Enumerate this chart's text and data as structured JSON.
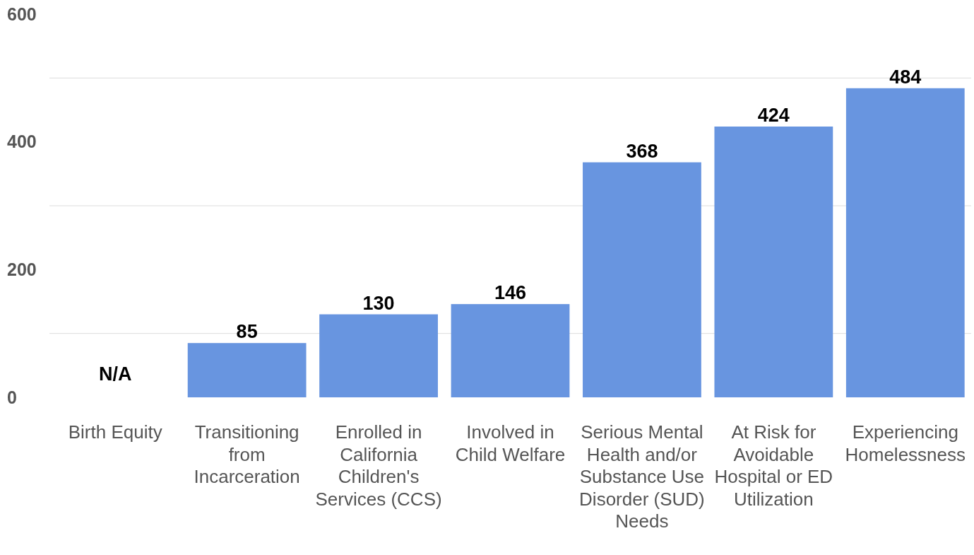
{
  "chart_data": {
    "type": "bar",
    "categories": [
      "Birth Equity",
      "Transitioning from Incarceration",
      "Enrolled in California Children's Services (CCS)",
      "Involved in Child Welfare",
      "Serious Mental Health and/or Substance Use Disorder (SUD) Needs",
      "At Risk for Avoidable Hospital or ED Utilization",
      "Experiencing Homelessness"
    ],
    "values": [
      null,
      85,
      130,
      146,
      368,
      424,
      484
    ],
    "value_labels": [
      "N/A",
      "85",
      "130",
      "146",
      "368",
      "424",
      "484"
    ],
    "color": "#6895e0",
    "ylim": [
      0,
      600
    ],
    "yticks": [
      0,
      {
        "value": 100,
        "label": null
      },
      200,
      {
        "value": 300,
        "label": null
      },
      400,
      {
        "value": 500,
        "label": null
      },
      600
    ],
    "grid": "y"
  }
}
